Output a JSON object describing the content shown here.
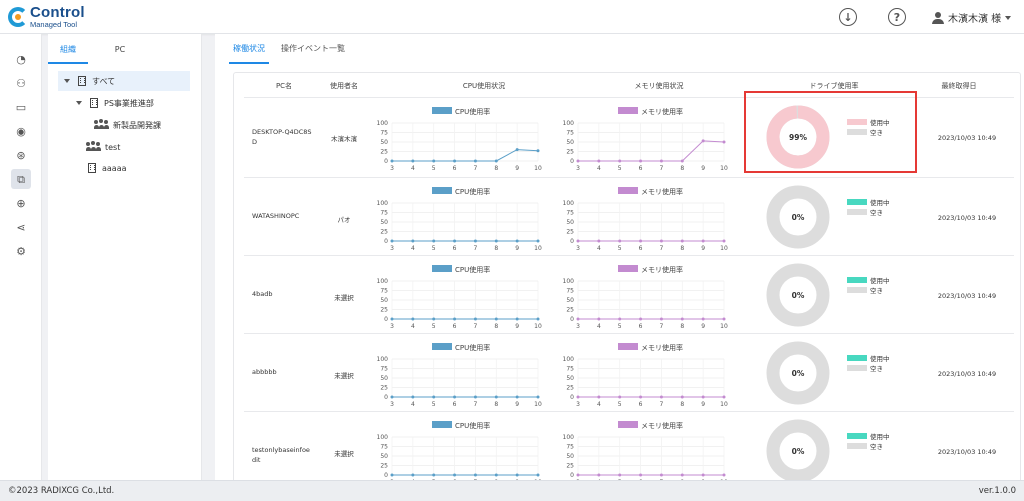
{
  "header": {
    "logo_main": "Control",
    "logo_sub": "Managed Tool",
    "download_icon": "download-icon",
    "help_icon": "help-icon",
    "user_name": "木濱木濱 様"
  },
  "rail": [
    {
      "name": "dashboard-icon",
      "glyph": "◔"
    },
    {
      "name": "organization-icon",
      "glyph": "⚇"
    },
    {
      "name": "computer-icon",
      "glyph": "▭"
    },
    {
      "name": "disc-icon",
      "glyph": "◉"
    },
    {
      "name": "badge-icon",
      "glyph": "⊛"
    },
    {
      "name": "chart-icon",
      "glyph": "⧉"
    },
    {
      "name": "download-circle-icon",
      "glyph": "⊕"
    },
    {
      "name": "share-icon",
      "glyph": "⋖"
    },
    {
      "name": "user-settings-icon",
      "glyph": "⚙"
    }
  ],
  "tree_tabs": [
    "組織",
    "PC"
  ],
  "tree": [
    {
      "label": "すべて",
      "icon": "building-icon",
      "indent": 0,
      "arrow": true
    },
    {
      "label": "PS事業推進部",
      "icon": "building-icon",
      "indent": 1,
      "arrow": true
    },
    {
      "label": "新製品開発課",
      "icon": "group-icon",
      "indent": 2,
      "arrow": false
    },
    {
      "label": "test",
      "icon": "group-icon",
      "indent": 1,
      "arrow": false
    },
    {
      "label": "aaaaa",
      "icon": "building-icon",
      "indent": 1,
      "arrow": false
    }
  ],
  "main_tabs": [
    "稼働状況",
    "操作イベント一覧"
  ],
  "columns": {
    "pc": "PC名",
    "user": "使用者名",
    "cpu": "CPU使用状況",
    "mem": "メモリ使用状況",
    "drive": "ドライブ使用率",
    "last": "最終取得日"
  },
  "legend": {
    "cpu": "CPU使用率",
    "mem": "メモリ使用率",
    "used": "使用中",
    "free": "空き"
  },
  "colors": {
    "cpu": "#5b9fc8",
    "mem": "#c38bd0",
    "drive_used_hi": "#f7c9cf",
    "drive_used": "#48d8c0",
    "drive_free": "#dddddd",
    "accent": "#1e88e5",
    "highlight": "#e53935"
  },
  "chart_data": {
    "type": "line",
    "x": [
      3,
      4,
      5,
      6,
      7,
      8,
      9,
      10
    ],
    "ylim": [
      0,
      100
    ],
    "yticks": [
      0,
      25,
      50,
      75,
      100
    ],
    "rows": [
      {
        "pc": "DESKTOP-Q4DC8SD",
        "user": "木濱木濱",
        "cpu": [
          0,
          0,
          0,
          0,
          0,
          0,
          30,
          27
        ],
        "mem": [
          0,
          0,
          0,
          0,
          0,
          0,
          53,
          50
        ],
        "drive_pct": 99,
        "drive_label": "99%",
        "last": "2023/10/03 10:49"
      },
      {
        "pc": "WATASHINOPC",
        "user": "パオ",
        "cpu": [
          0,
          0,
          0,
          0,
          0,
          0,
          0,
          0
        ],
        "mem": [
          0,
          0,
          0,
          0,
          0,
          0,
          0,
          0
        ],
        "drive_pct": 0,
        "drive_label": "0%",
        "last": "2023/10/03 10:49"
      },
      {
        "pc": "4badb",
        "user": "未選択",
        "cpu": [
          0,
          0,
          0,
          0,
          0,
          0,
          0,
          0
        ],
        "mem": [
          0,
          0,
          0,
          0,
          0,
          0,
          0,
          0
        ],
        "drive_pct": 0,
        "drive_label": "0%",
        "last": "2023/10/03 10:49"
      },
      {
        "pc": "abbbbb",
        "user": "未選択",
        "cpu": [
          0,
          0,
          0,
          0,
          0,
          0,
          0,
          0
        ],
        "mem": [
          0,
          0,
          0,
          0,
          0,
          0,
          0,
          0
        ],
        "drive_pct": 0,
        "drive_label": "0%",
        "last": "2023/10/03 10:49"
      },
      {
        "pc": "testonlybaseinfoedit",
        "user": "未選択",
        "cpu": [
          0,
          0,
          0,
          0,
          0,
          0,
          0,
          0
        ],
        "mem": [
          0,
          0,
          0,
          0,
          0,
          0,
          0,
          0
        ],
        "drive_pct": 0,
        "drive_label": "0%",
        "last": "2023/10/03 10:49"
      }
    ]
  },
  "footer": {
    "copyright": "©2023 RADIXCG Co.,Ltd.",
    "version": "ver.1.0.0"
  }
}
